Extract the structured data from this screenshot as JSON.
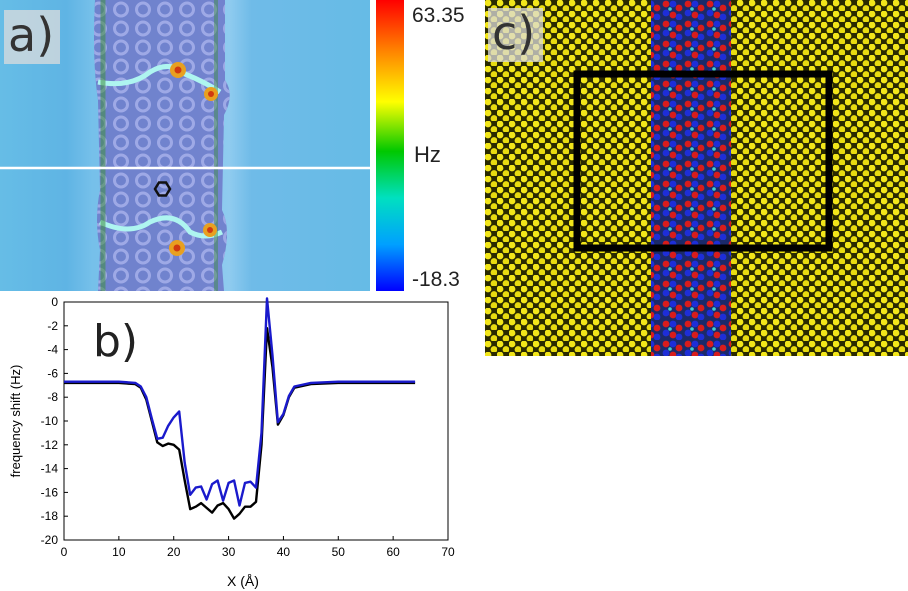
{
  "panel_labels": {
    "a": "a)",
    "b": "b)",
    "c": "c)"
  },
  "colorbar": {
    "max_label": "63.35",
    "min_label": "-18.3",
    "unit": "Hz",
    "colors": [
      "#ff0000",
      "#ff8000",
      "#ffff00",
      "#00c800",
      "#00e0c0",
      "#00a0ff",
      "#0000ff"
    ]
  },
  "chart_data": {
    "type": "line",
    "title": "",
    "xlabel": "X (Å)",
    "ylabel": "frequency shift (Hz)",
    "xlim": [
      0,
      70
    ],
    "ylim": [
      -20,
      0
    ],
    "xticks": [
      "0",
      "10",
      "20",
      "30",
      "40",
      "50",
      "60",
      "70"
    ],
    "yticks": [
      "0",
      "-2",
      "-4",
      "-6",
      "-8",
      "-10",
      "-12",
      "-14",
      "-16",
      "-18",
      "-20"
    ],
    "series": [
      {
        "name": "black",
        "color": "#000000",
        "x": [
          0,
          10,
          13,
          14,
          15,
          16,
          17,
          18,
          19,
          20,
          21,
          22,
          23,
          24,
          25,
          26,
          27,
          28,
          29,
          30,
          31,
          32,
          33,
          34,
          35,
          36,
          37,
          38,
          39,
          40,
          41,
          42,
          45,
          50,
          55,
          60,
          64
        ],
        "y": [
          -6.8,
          -6.8,
          -6.9,
          -7.2,
          -8.2,
          -10,
          -11.8,
          -12.1,
          -11.9,
          -12,
          -12.4,
          -15,
          -17.4,
          -17.2,
          -16.9,
          -17.3,
          -17.7,
          -17.1,
          -16.9,
          -17.4,
          -18.2,
          -17.8,
          -17.2,
          -17.2,
          -16.8,
          -12,
          -2.2,
          -5.5,
          -10.3,
          -9.5,
          -8,
          -7.2,
          -6.9,
          -6.8,
          -6.8,
          -6.8,
          -6.8
        ]
      },
      {
        "name": "blue",
        "color": "#1a1acc",
        "x": [
          0,
          10,
          13,
          14,
          15,
          16,
          17,
          18,
          19,
          20,
          21,
          22,
          23,
          24,
          25,
          26,
          27,
          28,
          29,
          30,
          31,
          32,
          33,
          34,
          35,
          36,
          37,
          38,
          39,
          40,
          41,
          42,
          45,
          50,
          55,
          60,
          64
        ],
        "y": [
          -6.7,
          -6.7,
          -6.8,
          -7.1,
          -8,
          -9.8,
          -11.5,
          -11.4,
          -10.4,
          -9.7,
          -9.2,
          -13.5,
          -16.2,
          -15.6,
          -15.5,
          -16.6,
          -15.3,
          -15,
          -16.7,
          -15.2,
          -15,
          -17.1,
          -15.2,
          -15.1,
          -15.6,
          -11,
          0.3,
          -4.5,
          -10.1,
          -9.4,
          -7.9,
          -7.1,
          -6.8,
          -6.7,
          -6.7,
          -6.7,
          -6.7
        ]
      }
    ]
  }
}
